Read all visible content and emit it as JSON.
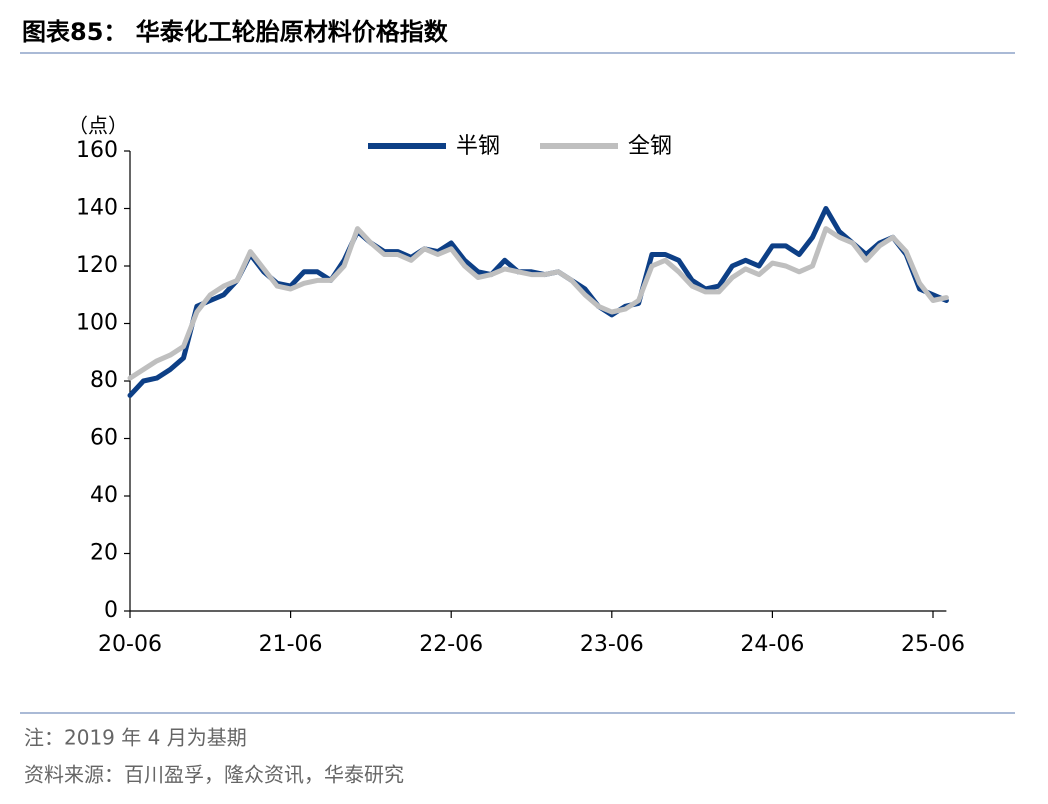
{
  "header": {
    "title": "图表85：  华泰化工轮胎原材料价格指数"
  },
  "chart_data": {
    "type": "line",
    "y_unit_label": "（点）",
    "x": [
      0,
      1,
      2,
      3,
      4,
      5,
      6,
      7,
      8,
      9,
      10,
      11,
      12,
      13,
      14,
      15,
      16,
      17,
      18,
      19,
      20,
      21,
      22,
      23,
      24,
      25,
      26,
      27,
      28,
      29,
      30,
      31,
      32,
      33,
      34,
      35,
      36,
      37,
      38,
      39,
      40,
      41,
      42,
      43,
      44,
      45,
      46,
      47,
      48,
      49,
      50,
      51,
      52,
      53,
      54,
      55,
      56,
      57,
      58,
      59,
      60,
      61
    ],
    "xlim": [
      0,
      61
    ],
    "xticks": [
      {
        "value": 0,
        "label": "20-06"
      },
      {
        "value": 12,
        "label": "21-06"
      },
      {
        "value": 24,
        "label": "22-06"
      },
      {
        "value": 36,
        "label": "23-06"
      },
      {
        "value": 48,
        "label": "24-06"
      },
      {
        "value": 60,
        "label": "25-06"
      }
    ],
    "ylim": [
      0,
      160
    ],
    "yticks": [
      0,
      20,
      40,
      60,
      80,
      100,
      120,
      140,
      160
    ],
    "legend": "top",
    "series": [
      {
        "name": "半钢",
        "color": "#0d3f86",
        "values": [
          75,
          80,
          81,
          84,
          88,
          106,
          108,
          110,
          115,
          124,
          118,
          114,
          113,
          118,
          118,
          115,
          122,
          132,
          128,
          125,
          125,
          123,
          126,
          125,
          128,
          122,
          118,
          117,
          122,
          118,
          118,
          117,
          118,
          115,
          112,
          106,
          103,
          106,
          107,
          124,
          124,
          122,
          115,
          112,
          113,
          120,
          122,
          120,
          127,
          127,
          124,
          130,
          140,
          132,
          128,
          124,
          128,
          130,
          124,
          112,
          110,
          108
        ]
      },
      {
        "name": "全钢",
        "color": "#bfbfbf",
        "values": [
          81,
          84,
          87,
          89,
          92,
          104,
          110,
          113,
          115,
          125,
          119,
          113,
          112,
          114,
          115,
          115,
          120,
          133,
          128,
          124,
          124,
          122,
          126,
          124,
          126,
          120,
          116,
          117,
          119,
          118,
          117,
          117,
          118,
          115,
          110,
          106,
          104,
          105,
          108,
          120,
          122,
          118,
          113,
          111,
          111,
          116,
          119,
          117,
          121,
          120,
          118,
          120,
          133,
          130,
          128,
          122,
          127,
          130,
          125,
          114,
          108,
          109
        ]
      }
    ]
  },
  "footer": {
    "note": "注：2019 年 4 月为基期",
    "source": "资料来源：百川盈孚，隆众资讯，华泰研究"
  }
}
